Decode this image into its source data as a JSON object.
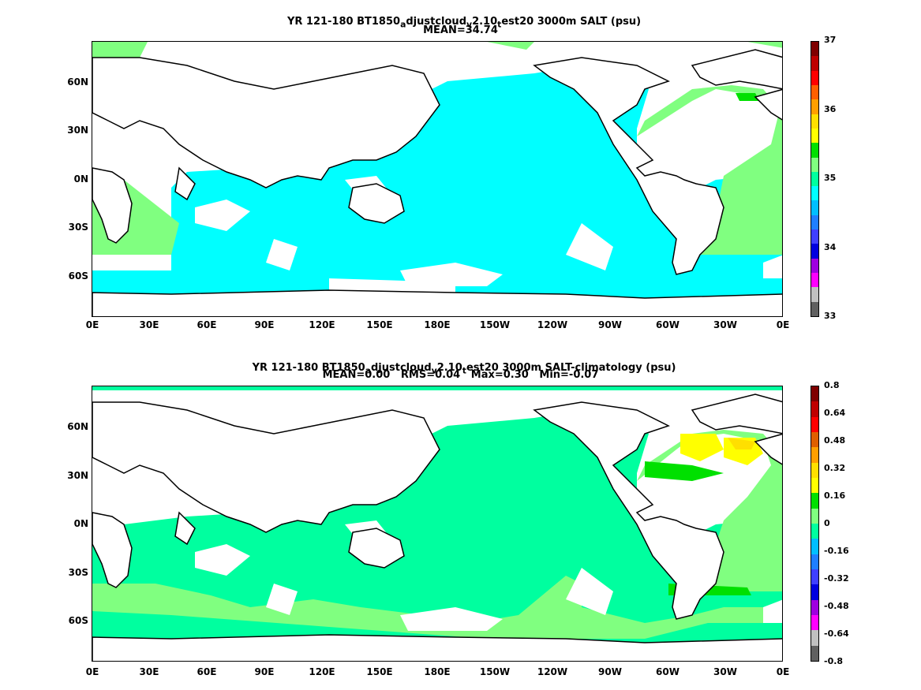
{
  "panels": [
    {
      "title": "YR 121-180 BT1850_adjustcloud_v2.10_test20 3000m SALT (psu)",
      "title_parts": [
        "YR 121-180 BT1850",
        "a",
        "djustcloud",
        "v",
        "2.10",
        "t",
        "est20 3000m SALT (psu)"
      ],
      "stats": "MEAN=34.74",
      "colorbar_labels": [
        "37",
        "36",
        "35",
        "34",
        "33"
      ],
      "colors": [
        "#7f0000",
        "#bf0000",
        "#ff0000",
        "#ff5f00",
        "#ff9f00",
        "#ffdf00",
        "#ffff00",
        "#00e000",
        "#80ff80",
        "#00ff9f",
        "#00ffff",
        "#00bfff",
        "#1f7fff",
        "#3f3fff",
        "#0000df",
        "#9f00df",
        "#ff00ff",
        "#c0c0c0",
        "#606060"
      ],
      "ocean_base_color": "#00ffff",
      "atlantic_color": "#80ff80"
    },
    {
      "title": "YR 121-180 BT1850_adjustcloud_v2.10_test20 3000m SALT-climatology (psu)",
      "title_parts": [
        "YR 121-180 BT1850",
        "a",
        "djustcloud",
        "v",
        "2.10",
        "t",
        "est20 3000m SALT-climatology (psu)"
      ],
      "stats": "MEAN=0.00   RMS=0.04   Max=0.30   Min=-0.07",
      "colorbar_labels": [
        "0.8",
        "0.64",
        "0.48",
        "0.32",
        "0.16",
        "0",
        "-0.16",
        "-0.32",
        "-0.48",
        "-0.64",
        "-0.8"
      ],
      "colors": [
        "#7f0000",
        "#bf0000",
        "#ff0000",
        "#df5f00",
        "#ff9f00",
        "#ffdf00",
        "#ffff00",
        "#00e000",
        "#80ff80",
        "#00ff9f",
        "#00bfff",
        "#1f7fff",
        "#3f3fff",
        "#0000df",
        "#9f00df",
        "#ff00ff",
        "#c0c0c0",
        "#606060"
      ],
      "ocean_base_color": "#00ff9f",
      "atlantic_color": "#80ff80"
    }
  ],
  "axes": {
    "x_ticks": [
      "0E",
      "30E",
      "60E",
      "90E",
      "120E",
      "150E",
      "180E",
      "150W",
      "120W",
      "90W",
      "60W",
      "30W",
      "0E"
    ],
    "y_ticks": [
      "60N",
      "30N",
      "0N",
      "30S",
      "60S"
    ]
  }
}
